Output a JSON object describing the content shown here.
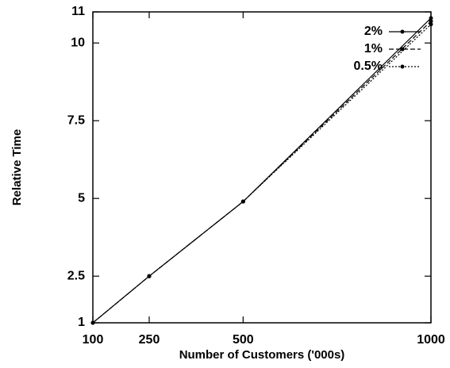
{
  "chart_data": {
    "type": "line",
    "x_label": "Number of Customers ('000s)",
    "y_label": "Relative Time",
    "x": [
      100,
      250,
      500,
      1000
    ],
    "series": [
      {
        "name": "2%",
        "color": "#000000",
        "style": "solid",
        "values": [
          1,
          2.5,
          4.9,
          10.8
        ]
      },
      {
        "name": "1%",
        "color": "#000000",
        "style": "dashed",
        "values": [
          1,
          2.5,
          4.9,
          10.7
        ]
      },
      {
        "name": "0.5%",
        "color": "#000000",
        "style": "dotted",
        "values": [
          1,
          2.5,
          4.9,
          10.6
        ]
      }
    ],
    "xlim": [
      100,
      1000
    ],
    "xticks": [
      100,
      250,
      500,
      1000
    ],
    "ylim": [
      1,
      11
    ],
    "yticks": [
      1,
      2.5,
      5,
      7.5,
      10,
      11
    ],
    "legend": "top-right",
    "grid": false
  }
}
